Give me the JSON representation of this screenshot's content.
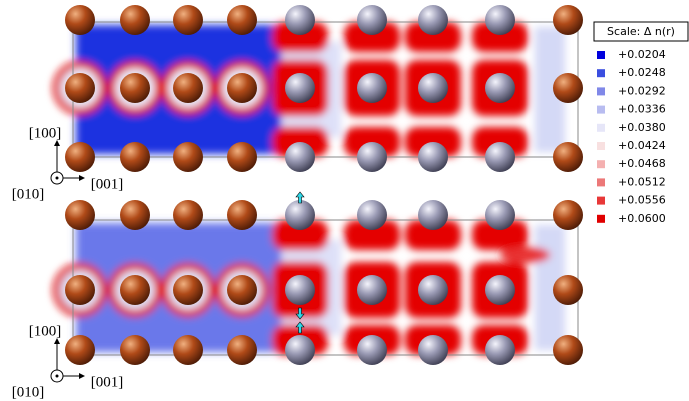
{
  "legend": {
    "title": "Scale:   Δ n(r)",
    "items": [
      {
        "label": "+0.0204",
        "color": "#0000dd"
      },
      {
        "label": "+0.0248",
        "color": "#3a4ee0"
      },
      {
        "label": "+0.0292",
        "color": "#8088e8"
      },
      {
        "label": "+0.0336",
        "color": "#b8bcf0"
      },
      {
        "label": "+0.0380",
        "color": "#e6e6f8"
      },
      {
        "label": "+0.0424",
        "color": "#f8e0e0"
      },
      {
        "label": "+0.0468",
        "color": "#f4b0b0"
      },
      {
        "label": "+0.0512",
        "color": "#ec7878"
      },
      {
        "label": "+0.0556",
        "color": "#e83838"
      },
      {
        "label": "+0.0600",
        "color": "#e00000"
      }
    ]
  },
  "panels": [
    {
      "axes": {
        "vertical": "[100]",
        "out": "[010]",
        "horizontal": "[001]"
      }
    },
    {
      "axes": {
        "vertical": "[100]",
        "out": "[010]",
        "horizontal": "[001]"
      }
    }
  ]
}
